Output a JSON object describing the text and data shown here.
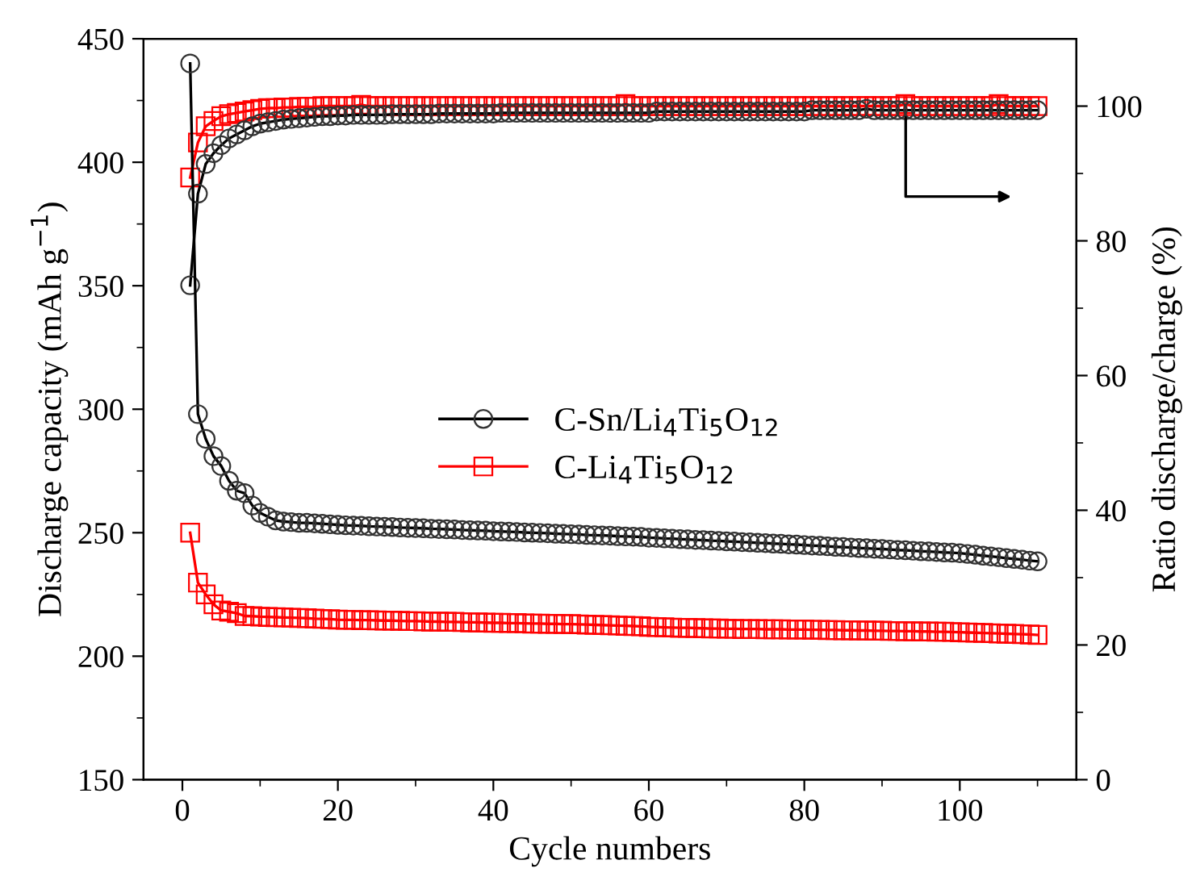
{
  "chart_data": {
    "type": "line",
    "xlabel": "Cycle numbers",
    "ylabel": "Discharge capacity (mAh g$^{−1}$)",
    "y2label": "Ratio discharge/charge (%)",
    "xlim": [
      -5,
      115
    ],
    "xticks": [
      0,
      20,
      40,
      60,
      80,
      100,
      {
        "value": 10,
        "label": null
      },
      {
        "value": 30,
        "label": null
      },
      {
        "value": 50,
        "label": null
      },
      {
        "value": 70,
        "label": null
      },
      {
        "value": 90,
        "label": null
      },
      {
        "value": 110,
        "label": null
      }
    ],
    "ylim": [
      150,
      450
    ],
    "yticks": [
      150,
      200,
      250,
      300,
      350,
      400,
      450,
      {
        "value": 175,
        "label": null
      },
      {
        "value": 225,
        "label": null
      },
      {
        "value": 275,
        "label": null
      },
      {
        "value": 325,
        "label": null
      },
      {
        "value": 375,
        "label": null
      },
      {
        "value": 425,
        "label": null
      }
    ],
    "y2lim": [
      0,
      110
    ],
    "y2ticks": [
      0,
      20,
      40,
      60,
      80,
      100,
      {
        "value": 10,
        "label": null
      },
      {
        "value": 30,
        "label": null
      },
      {
        "value": 50,
        "label": null
      },
      {
        "value": 70,
        "label": null
      },
      {
        "value": 90,
        "label": null
      }
    ],
    "x": [
      1,
      2,
      3,
      4,
      5,
      6,
      7,
      8,
      9,
      10,
      11,
      12,
      13,
      14,
      15,
      16,
      17,
      18,
      19,
      20,
      21,
      22,
      23,
      24,
      25,
      26,
      27,
      28,
      29,
      30,
      31,
      32,
      33,
      34,
      35,
      36,
      37,
      38,
      39,
      40,
      41,
      42,
      43,
      44,
      45,
      46,
      47,
      48,
      49,
      50,
      51,
      52,
      53,
      54,
      55,
      56,
      57,
      58,
      59,
      60,
      61,
      62,
      63,
      64,
      65,
      66,
      67,
      68,
      69,
      70,
      71,
      72,
      73,
      74,
      75,
      76,
      77,
      78,
      79,
      80,
      81,
      82,
      83,
      84,
      85,
      86,
      87,
      88,
      89,
      90,
      91,
      92,
      93,
      94,
      95,
      96,
      97,
      98,
      99,
      100,
      101,
      102,
      103,
      104,
      105,
      106,
      107,
      108,
      109,
      110
    ],
    "legend": "center",
    "line_style": "solid",
    "series": [
      {
        "name": "C-Sn/Li$_{4}$Ti$_{5}$O$_{12}$",
        "color": "#000000",
        "marker": "circle",
        "values": [
          440,
          298,
          288,
          281,
          277,
          271,
          267,
          266,
          261,
          258,
          256.5,
          255,
          254.5,
          254.3,
          254,
          254,
          253.8,
          253.6,
          253.4,
          253.2,
          253.0,
          252.9,
          252.8,
          252.6,
          252.5,
          252.4,
          252.3,
          252.1,
          252.0,
          251.9,
          251.8,
          251.6,
          251.5,
          251.4,
          251.3,
          251.1,
          251.0,
          250.9,
          250.8,
          250.6,
          250.5,
          250.4,
          250.3,
          250.1,
          250.0,
          249.9,
          249.8,
          249.6,
          249.5,
          249.4,
          249.3,
          249.1,
          249.0,
          248.9,
          248.8,
          248.6,
          248.5,
          248.4,
          248.3,
          248.0,
          247.9,
          247.7,
          247.6,
          247.4,
          247.3,
          247.1,
          247.0,
          246.8,
          246.7,
          246.5,
          246.4,
          246.2,
          246.1,
          245.9,
          245.8,
          245.6,
          245.5,
          245.3,
          245.2,
          245.0,
          244.8,
          244.7,
          244.5,
          244.3,
          244.2,
          244.0,
          243.8,
          243.7,
          243.5,
          243.4,
          243.2,
          243.0,
          242.9,
          242.7,
          242.5,
          242.4,
          242.2,
          242.0,
          241.9,
          241.7,
          241.4,
          241.1,
          240.7,
          240.4,
          240.1,
          239.7,
          239.4,
          239.1,
          238.7,
          238.4
        ]
      },
      {
        "name": "C-Li$_{4}$Ti$_{5}$O$_{12}$",
        "color": "#ff0000",
        "marker": "square",
        "values": [
          250,
          229.8,
          225,
          221,
          218.5,
          218,
          217.4,
          216.3,
          216.2,
          216,
          215.9,
          215.8,
          215.7,
          215.6,
          215.5,
          215.4,
          215.2,
          215.1,
          215.0,
          214.8,
          214.7,
          214.7,
          214.6,
          214.6,
          214.5,
          214.4,
          214.4,
          214.3,
          214.2,
          214.2,
          214.1,
          214.0,
          214.0,
          213.9,
          213.9,
          213.8,
          213.7,
          213.7,
          213.6,
          213.5,
          213.5,
          213.4,
          213.4,
          213.3,
          213.2,
          213.2,
          213.1,
          213.1,
          213.0,
          213.0,
          212.9,
          212.8,
          212.7,
          212.6,
          212.5,
          212.4,
          212.3,
          212.2,
          212.1,
          211.9,
          211.8,
          211.7,
          211.6,
          211.5,
          211.5,
          211.4,
          211.3,
          211.2,
          211.2,
          211.1,
          211.1,
          211.0,
          211.0,
          211.0,
          210.9,
          210.9,
          210.9,
          210.8,
          210.8,
          210.8,
          210.7,
          210.7,
          210.6,
          210.6,
          210.5,
          210.5,
          210.4,
          210.4,
          210.3,
          210.3,
          210.2,
          210.2,
          210.1,
          210.1,
          210.0,
          210.0,
          209.9,
          209.9,
          209.8,
          209.7,
          209.6,
          209.5,
          209.4,
          209.3,
          209.2,
          209.1,
          209.0,
          208.9,
          208.8,
          208.6
        ]
      },
      {
        "color": "#ff0000",
        "marker": "square",
        "axis": "y2",
        "values": [
          89.4,
          94.6,
          97,
          97.8,
          98.5,
          98.8,
          99,
          99.2,
          99.4,
          99.6,
          99.7,
          99.7,
          99.8,
          99.8,
          99.9,
          99.9,
          99.9,
          100,
          100,
          100,
          100,
          100,
          100.2,
          100,
          100,
          100,
          100,
          100,
          100,
          100,
          100,
          100,
          100,
          100,
          100,
          100,
          100,
          100,
          100,
          100,
          100,
          100,
          100,
          100,
          100,
          100,
          100,
          100,
          100,
          100,
          100,
          100,
          100,
          100,
          100,
          100,
          100.3,
          100,
          100,
          100,
          100,
          100,
          100,
          100,
          100,
          100,
          100,
          100,
          100,
          100,
          100,
          100,
          100,
          100,
          100,
          100,
          100,
          100,
          100,
          100,
          100,
          100,
          100,
          100,
          100,
          100,
          100,
          100,
          100,
          100,
          100,
          100,
          100.3,
          100,
          100,
          100,
          100,
          100,
          100,
          100,
          100,
          100,
          100,
          100,
          100.3,
          100,
          100,
          100,
          100,
          100
        ]
      },
      {
        "color": "#000000",
        "marker": "circle",
        "axis": "y2",
        "values": [
          73.4,
          87,
          91.4,
          93,
          94.2,
          95.2,
          95.8,
          96.4,
          97,
          97.4,
          97.6,
          97.8,
          98,
          98.1,
          98.2,
          98.3,
          98.4,
          98.5,
          98.5,
          98.6,
          98.6,
          98.7,
          98.7,
          98.7,
          98.7,
          98.7,
          98.8,
          98.8,
          98.8,
          98.8,
          98.8,
          98.8,
          98.9,
          98.9,
          98.9,
          98.9,
          98.9,
          98.9,
          98.9,
          98.9,
          99,
          99,
          99,
          99,
          99,
          99,
          99,
          99,
          99,
          99,
          99,
          99,
          99,
          99,
          99,
          99,
          99,
          99,
          99,
          99,
          99.2,
          99.2,
          99.2,
          99.2,
          99.2,
          99.2,
          99.2,
          99.2,
          99.2,
          99.2,
          99.2,
          99.2,
          99.2,
          99.2,
          99.2,
          99.2,
          99.2,
          99.2,
          99.2,
          99.2,
          99.4,
          99.4,
          99.4,
          99.4,
          99.4,
          99.4,
          99.4,
          99.6,
          99.4,
          99.4,
          99.4,
          99.4,
          99.4,
          99.4,
          99.4,
          99.4,
          99.4,
          99.4,
          99.4,
          99.4,
          99.4,
          99.4,
          99.4,
          99.4,
          99.4,
          99.4,
          99.4,
          99.4,
          99.4,
          99.4
        ]
      }
    ]
  }
}
